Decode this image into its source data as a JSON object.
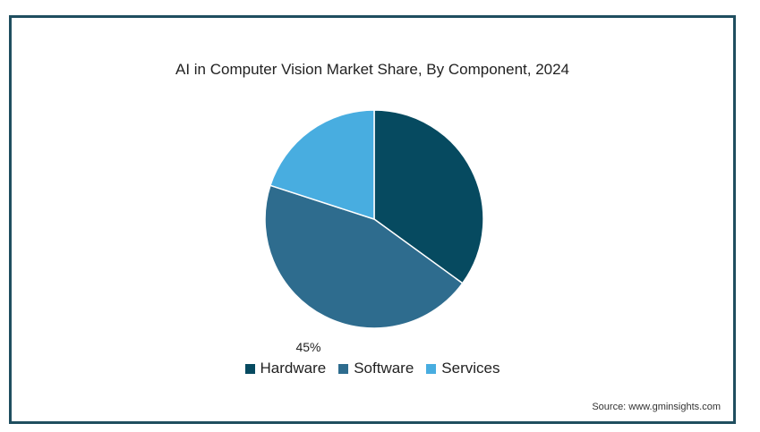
{
  "chart_data": {
    "type": "pie",
    "title": "AI in Computer Vision Market Share, By Component, 2024",
    "slices": [
      {
        "label": "Hardware",
        "value": 35,
        "color": "#064a60"
      },
      {
        "label": "Software",
        "value": 45,
        "color": "#2e6c8e"
      },
      {
        "label": "Services",
        "value": 20,
        "color": "#48ade0"
      }
    ],
    "data_labels": [
      {
        "slice": "Software",
        "text": "45%"
      }
    ],
    "legend_position": "bottom"
  },
  "source": "Source: www.gminsights.com"
}
